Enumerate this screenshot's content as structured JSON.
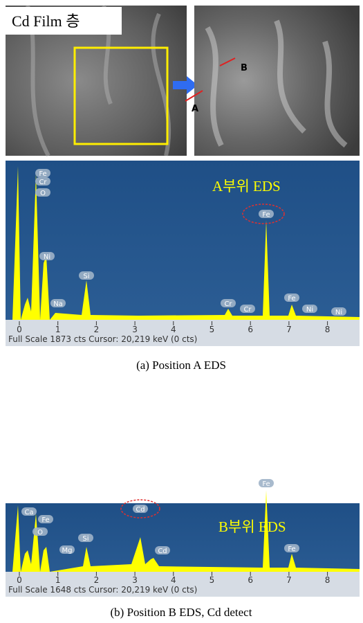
{
  "sem_left": {
    "label": "Cd Film 층"
  },
  "sem_right": {
    "markers": [
      "A",
      "B"
    ]
  },
  "panels": [
    {
      "title": "A부위 EDS",
      "peaks": [
        "Fe",
        "Cr",
        "O",
        "Ni",
        "Na",
        "Si",
        "Fe",
        "Cr",
        "Cr",
        "Fe",
        "Ni",
        "Ni"
      ],
      "axis_ticks": [
        "0",
        "1",
        "2",
        "3",
        "4",
        "5",
        "6",
        "7",
        "8"
      ],
      "footer": "Full Scale 1873 cts   Cursor: 20,219 keV (0 cts)",
      "caption": "(a)  Position  A  EDS"
    },
    {
      "title": "B부위 EDS",
      "peaks": [
        "Ca",
        "Fe",
        "O",
        "Mg",
        "Si",
        "Cd",
        "Cd",
        "Fe",
        "Fe"
      ],
      "axis_ticks": [
        "0",
        "1",
        "2",
        "3",
        "4",
        "5",
        "6",
        "7",
        "8"
      ],
      "footer": "Full Scale 1648 cts   Cursor: 20,219 keV (0 cts)",
      "caption": "(b)  Position  B  EDS,  Cd  detect"
    }
  ]
}
